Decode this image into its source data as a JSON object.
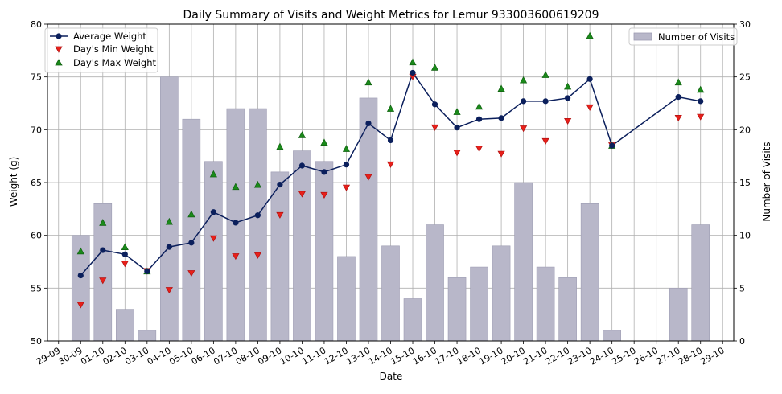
{
  "chart_data": {
    "type": "bar+line+scatter",
    "title": "Daily Summary of Visits and Weight Metrics for Lemur 933003600619209",
    "xlabel": "Date",
    "ylabel_left": "Weight (g)",
    "ylabel_right": "Number of Visits",
    "ylim_left": [
      50,
      80
    ],
    "ylim_right": [
      0,
      30
    ],
    "yticks_left": [
      "50",
      "55",
      "60",
      "65",
      "70",
      "75",
      "80"
    ],
    "yticks_right": [
      "0",
      "5",
      "10",
      "15",
      "20",
      "25",
      "30"
    ],
    "grid": true,
    "legend_left_placement": "top-left",
    "legend_right_placement": "top-right",
    "colors": {
      "bars": "#b8b7c9",
      "bar_edge": "#9d9cb2",
      "avg_line": "#0b1f5c",
      "min_marker": "#e8201a",
      "max_marker": "#1a8a1a",
      "grid": "#b0b0b0"
    },
    "categories": [
      "29-09",
      "30-09",
      "01-10",
      "02-10",
      "03-10",
      "04-10",
      "05-10",
      "06-10",
      "07-10",
      "08-10",
      "09-10",
      "10-10",
      "11-10",
      "12-10",
      "13-10",
      "14-10",
      "15-10",
      "16-10",
      "17-10",
      "18-10",
      "19-10",
      "20-10",
      "21-10",
      "22-10",
      "23-10",
      "24-10",
      "25-10",
      "26-10",
      "27-10",
      "28-10",
      "29-10"
    ],
    "series": [
      {
        "name": "Number of Visits",
        "axis": "right",
        "kind": "bar",
        "values": [
          null,
          10,
          13,
          3,
          1,
          25,
          21,
          17,
          22,
          22,
          16,
          18,
          17,
          8,
          23,
          9,
          4,
          11,
          6,
          7,
          9,
          15,
          7,
          6,
          13,
          1,
          null,
          null,
          5,
          11,
          null
        ]
      },
      {
        "name": "Average Weight",
        "axis": "left",
        "kind": "line",
        "values": [
          null,
          56.2,
          58.6,
          58.2,
          56.6,
          58.9,
          59.3,
          62.2,
          61.2,
          61.9,
          64.8,
          66.6,
          66.0,
          66.7,
          70.6,
          69.0,
          75.4,
          72.4,
          70.2,
          71.0,
          71.1,
          72.7,
          72.7,
          73.0,
          74.8,
          68.5,
          null,
          null,
          73.1,
          72.7,
          null
        ]
      },
      {
        "name": "Day's Min Weight",
        "axis": "left",
        "kind": "scatter",
        "values": [
          null,
          53.4,
          55.7,
          57.3,
          56.6,
          54.8,
          56.4,
          59.7,
          58.0,
          58.1,
          61.9,
          63.9,
          63.8,
          64.5,
          65.5,
          66.7,
          75.0,
          70.2,
          67.8,
          68.2,
          67.7,
          70.1,
          68.9,
          70.8,
          72.1,
          68.5,
          null,
          null,
          71.1,
          71.2,
          null
        ]
      },
      {
        "name": "Day's Max Weight",
        "axis": "left",
        "kind": "scatter",
        "values": [
          null,
          58.5,
          61.2,
          58.9,
          56.6,
          61.3,
          62.0,
          65.8,
          64.6,
          64.8,
          68.4,
          69.5,
          68.8,
          68.2,
          74.5,
          72.0,
          76.4,
          75.9,
          71.7,
          72.2,
          73.9,
          74.7,
          75.2,
          74.1,
          78.9,
          68.5,
          null,
          null,
          74.5,
          73.8,
          null
        ]
      }
    ]
  }
}
